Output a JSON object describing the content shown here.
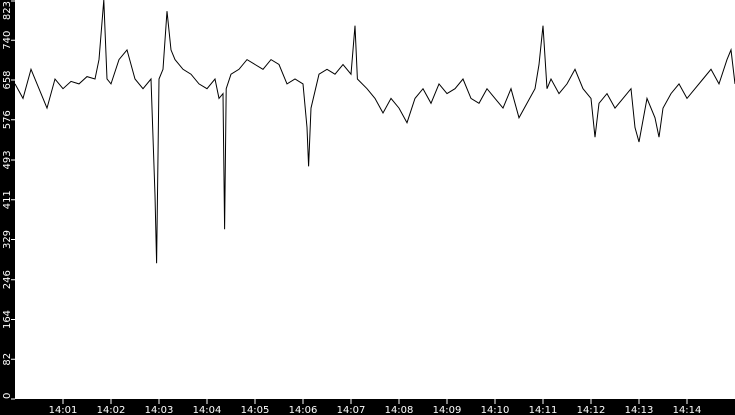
{
  "chart_data": {
    "type": "line",
    "title": "",
    "xlabel": "",
    "ylabel": "",
    "xlim": [
      "14:00:00",
      "14:15:00"
    ],
    "ylim": [
      0,
      823
    ],
    "yticks": [
      "0",
      "82",
      "164",
      "246",
      "329",
      "411",
      "493",
      "576",
      "658",
      "740",
      "823"
    ],
    "xticks": [
      "14:01",
      "14:02",
      "14:03",
      "14:04",
      "14:05",
      "14:06",
      "14:07",
      "14:08",
      "14:09",
      "14:10",
      "14:11",
      "14:12",
      "14:13",
      "14:14"
    ],
    "grid": false,
    "colors": {
      "background": "#000000",
      "plot": "#ffffff",
      "line": "#000000",
      "text": "#ffffff"
    },
    "points": [
      [
        "14:00:00",
        650
      ],
      [
        "14:00:10",
        620
      ],
      [
        "14:00:20",
        680
      ],
      [
        "14:00:30",
        640
      ],
      [
        "14:00:40",
        600
      ],
      [
        "14:00:50",
        660
      ],
      [
        "14:01:00",
        640
      ],
      [
        "14:01:10",
        655
      ],
      [
        "14:01:20",
        650
      ],
      [
        "14:01:30",
        665
      ],
      [
        "14:01:40",
        660
      ],
      [
        "14:01:45",
        700
      ],
      [
        "14:01:51",
        823
      ],
      [
        "14:01:55",
        660
      ],
      [
        "14:02:00",
        650
      ],
      [
        "14:02:10",
        700
      ],
      [
        "14:02:20",
        720
      ],
      [
        "14:02:30",
        660
      ],
      [
        "14:02:40",
        640
      ],
      [
        "14:02:50",
        660
      ],
      [
        "14:02:55",
        420
      ],
      [
        "14:02:57",
        280
      ],
      [
        "14:03:00",
        660
      ],
      [
        "14:03:05",
        680
      ],
      [
        "14:03:10",
        800
      ],
      [
        "14:03:15",
        720
      ],
      [
        "14:03:20",
        700
      ],
      [
        "14:03:30",
        680
      ],
      [
        "14:03:40",
        670
      ],
      [
        "14:03:50",
        650
      ],
      [
        "14:04:00",
        640
      ],
      [
        "14:04:10",
        660
      ],
      [
        "14:04:15",
        620
      ],
      [
        "14:04:20",
        630
      ],
      [
        "14:04:22",
        350
      ],
      [
        "14:04:24",
        640
      ],
      [
        "14:04:30",
        670
      ],
      [
        "14:04:40",
        680
      ],
      [
        "14:04:50",
        700
      ],
      [
        "14:05:00",
        690
      ],
      [
        "14:05:10",
        680
      ],
      [
        "14:05:20",
        700
      ],
      [
        "14:05:30",
        690
      ],
      [
        "14:05:40",
        650
      ],
      [
        "14:05:50",
        660
      ],
      [
        "14:06:00",
        650
      ],
      [
        "14:06:05",
        560
      ],
      [
        "14:06:07",
        480
      ],
      [
        "14:06:10",
        600
      ],
      [
        "14:06:20",
        670
      ],
      [
        "14:06:30",
        680
      ],
      [
        "14:06:40",
        670
      ],
      [
        "14:06:50",
        690
      ],
      [
        "14:07:00",
        670
      ],
      [
        "14:07:05",
        770
      ],
      [
        "14:07:08",
        660
      ],
      [
        "14:07:20",
        640
      ],
      [
        "14:07:30",
        620
      ],
      [
        "14:07:40",
        590
      ],
      [
        "14:07:50",
        620
      ],
      [
        "14:08:00",
        600
      ],
      [
        "14:08:10",
        570
      ],
      [
        "14:08:20",
        620
      ],
      [
        "14:08:30",
        640
      ],
      [
        "14:08:40",
        610
      ],
      [
        "14:08:50",
        650
      ],
      [
        "14:09:00",
        630
      ],
      [
        "14:09:10",
        640
      ],
      [
        "14:09:20",
        660
      ],
      [
        "14:09:30",
        620
      ],
      [
        "14:09:40",
        610
      ],
      [
        "14:09:50",
        640
      ],
      [
        "14:10:00",
        620
      ],
      [
        "14:10:10",
        600
      ],
      [
        "14:10:20",
        640
      ],
      [
        "14:10:30",
        580
      ],
      [
        "14:10:40",
        610
      ],
      [
        "14:10:50",
        640
      ],
      [
        "14:10:55",
        690
      ],
      [
        "14:11:00",
        770
      ],
      [
        "14:11:05",
        640
      ],
      [
        "14:11:10",
        660
      ],
      [
        "14:11:20",
        630
      ],
      [
        "14:11:30",
        650
      ],
      [
        "14:11:40",
        680
      ],
      [
        "14:11:50",
        640
      ],
      [
        "14:12:00",
        620
      ],
      [
        "14:12:05",
        540
      ],
      [
        "14:12:10",
        610
      ],
      [
        "14:12:20",
        630
      ],
      [
        "14:12:30",
        600
      ],
      [
        "14:12:40",
        620
      ],
      [
        "14:12:50",
        640
      ],
      [
        "14:12:55",
        560
      ],
      [
        "14:13:00",
        530
      ],
      [
        "14:13:10",
        620
      ],
      [
        "14:13:20",
        580
      ],
      [
        "14:13:25",
        540
      ],
      [
        "14:13:30",
        600
      ],
      [
        "14:13:40",
        630
      ],
      [
        "14:13:50",
        650
      ],
      [
        "14:14:00",
        620
      ],
      [
        "14:14:10",
        640
      ],
      [
        "14:14:20",
        660
      ],
      [
        "14:14:30",
        680
      ],
      [
        "14:14:40",
        650
      ],
      [
        "14:14:50",
        700
      ],
      [
        "14:14:55",
        720
      ],
      [
        "14:15:00",
        650
      ]
    ]
  }
}
